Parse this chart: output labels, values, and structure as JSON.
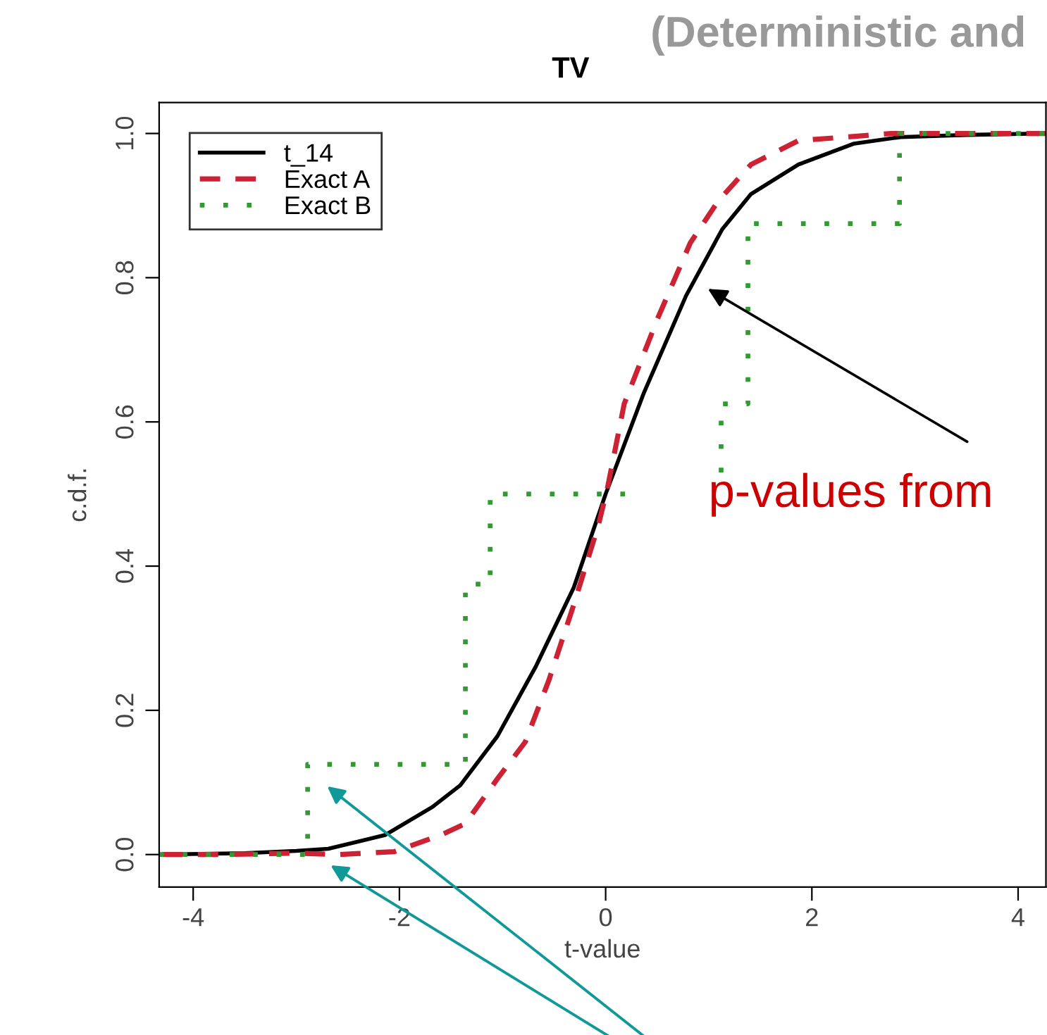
{
  "chart_data": {
    "type": "line",
    "title": "TV",
    "xlabel": "t-value",
    "ylabel": "c.d.f.",
    "annotations": [
      "(Deterministic and",
      "p-values from"
    ],
    "xlim": [
      -4.33,
      4.27
    ],
    "ylim": [
      -0.045,
      1.043
    ],
    "xticks": [
      -4,
      -2,
      0,
      2,
      4
    ],
    "yticks": [
      {
        "value": 0,
        "label": "0.0"
      },
      0.2,
      0.4,
      0.6,
      0.8,
      {
        "value": 1,
        "label": "1.0"
      }
    ],
    "grid": false,
    "legend": "top left",
    "marker": "none",
    "series": [
      {
        "name": "t_14",
        "color": "#000000",
        "line_style": "solid",
        "x": [
          -4.3,
          -3.5,
          -3.0,
          -2.69,
          -2.14,
          -1.68,
          -1.41,
          -1.05,
          -0.68,
          -0.31,
          0.0,
          0.37,
          0.78,
          1.13,
          1.41,
          1.87,
          2.41,
          2.86,
          3.5,
          4.27
        ],
        "values": [
          0.0,
          0.002,
          0.005,
          0.008,
          0.027,
          0.066,
          0.096,
          0.164,
          0.26,
          0.37,
          0.5,
          0.64,
          0.775,
          0.867,
          0.916,
          0.957,
          0.986,
          0.995,
          0.998,
          1.0
        ]
      },
      {
        "name": "Exact A",
        "color": "#cc2233",
        "line_style": "dashed",
        "x": [
          -4.3,
          -3.7,
          -3.0,
          -2.59,
          -2.05,
          -1.6,
          -1.36,
          -1.05,
          -0.78,
          -0.55,
          -0.31,
          -0.07,
          0.02,
          0.18,
          0.5,
          0.82,
          1.09,
          1.41,
          1.87,
          2.77,
          4.27
        ],
        "values": [
          0.0,
          0.0,
          0.002,
          0.0,
          0.004,
          0.027,
          0.043,
          0.105,
          0.156,
          0.242,
          0.346,
          0.457,
          0.51,
          0.625,
          0.742,
          0.848,
          0.906,
          0.957,
          0.99,
          1.0,
          1.0
        ]
      },
      {
        "name": "Exact B",
        "type": "step",
        "color": "#339933",
        "line_style": "dotted",
        "x": [
          -4.33,
          -2.89,
          -1.36,
          -1.12,
          0.37,
          1.12,
          1.12,
          1.38,
          2.85,
          4.27
        ],
        "values": [
          0.0,
          0.125,
          0.375,
          0.5,
          null,
          0.53,
          0.625,
          0.875,
          1.0,
          1.0
        ]
      }
    ]
  }
}
